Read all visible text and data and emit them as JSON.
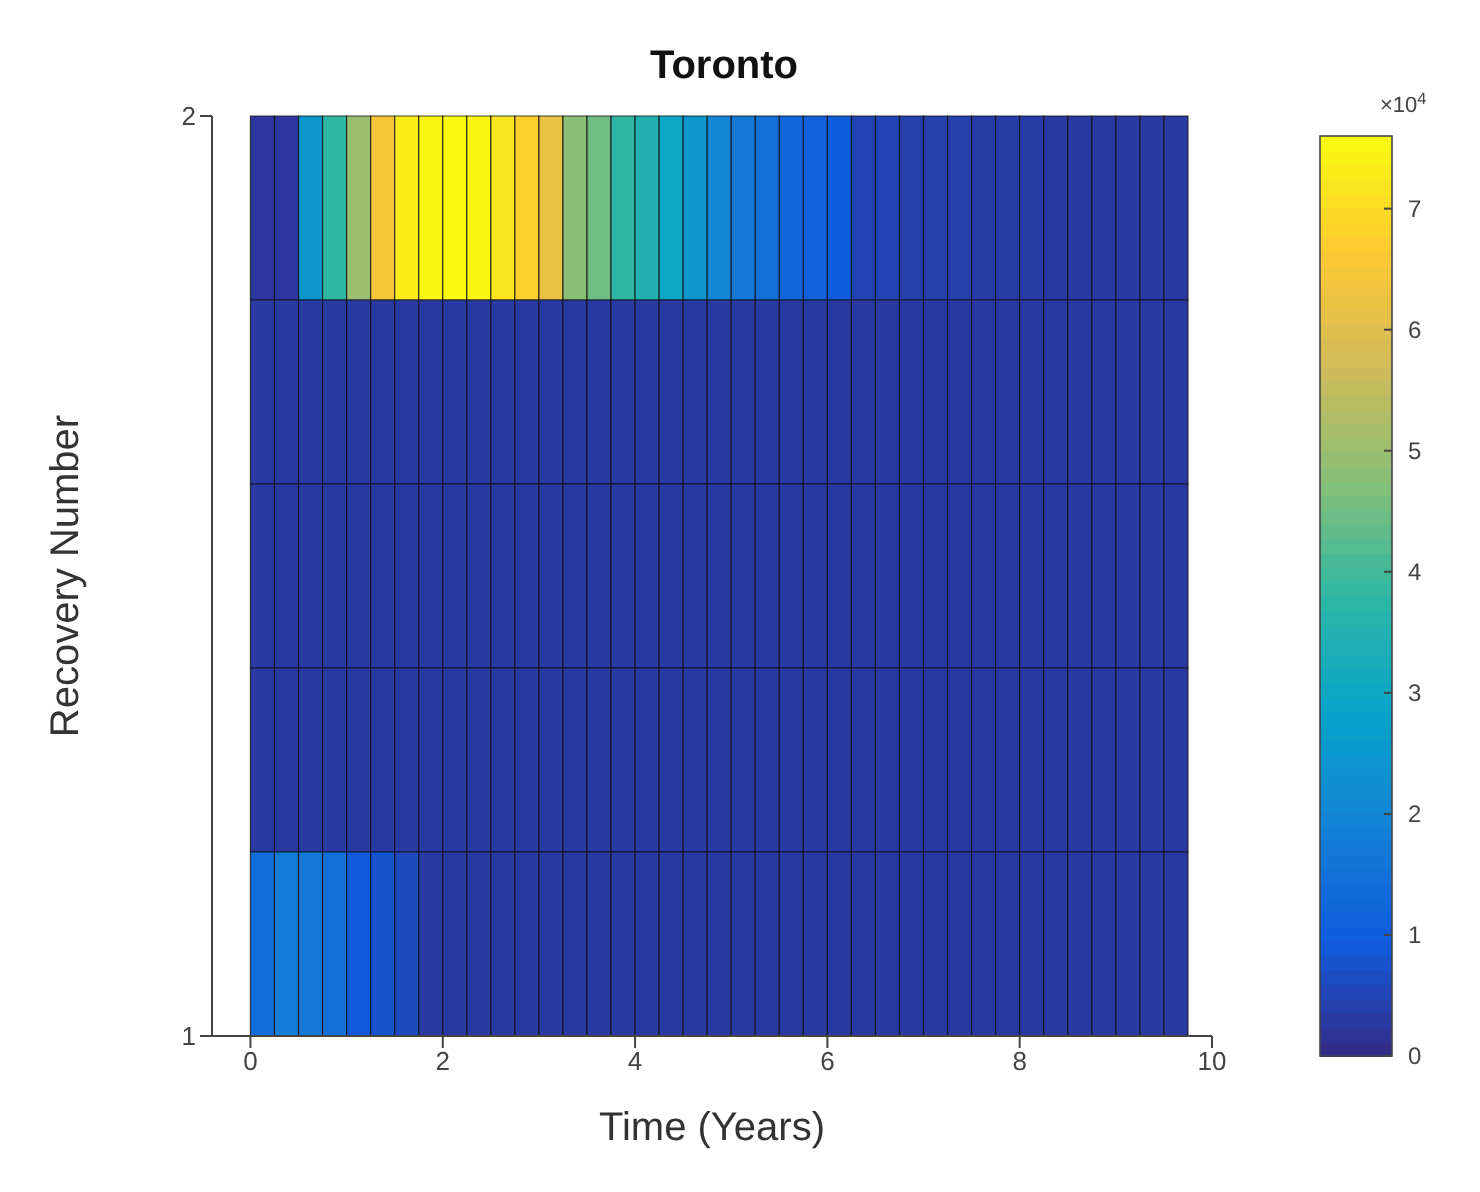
{
  "chart_data": {
    "type": "heatmap",
    "title": "Toronto",
    "xlabel": "Time (Years)",
    "ylabel": "Recovery Number",
    "x": [
      0.125,
      0.375,
      0.625,
      0.875,
      1.125,
      1.375,
      1.625,
      1.875,
      2.125,
      2.375,
      2.625,
      2.875,
      3.125,
      3.375,
      3.625,
      3.875,
      4.125,
      4.375,
      4.625,
      4.875,
      5.125,
      5.375,
      5.625,
      5.875,
      6.125,
      6.375,
      6.625,
      6.875,
      7.125,
      7.375,
      7.625,
      7.875,
      8.125,
      8.375,
      8.625,
      8.875,
      9.125,
      9.375,
      9.625
    ],
    "xlim": [
      -0.4,
      10
    ],
    "xticks": [
      0,
      2,
      4,
      6,
      8,
      10
    ],
    "ylim": [
      1,
      2
    ],
    "yticks": [
      1,
      2
    ],
    "cells": [
      [
        0.25,
        0.25,
        2.5,
        3.8,
        5,
        6.5,
        7.3,
        7.5,
        7.6,
        7.5,
        7.2,
        6.8,
        6.2,
        4.8,
        4.5,
        3.8,
        3.5,
        3,
        2.5,
        2,
        1.7,
        1.5,
        1.2,
        1.1,
        1,
        0.5,
        0.5,
        0.4,
        0.4,
        0.4,
        0.35,
        0.35,
        0.35,
        0.3,
        0.3,
        0.3,
        0.3,
        0.3,
        0.3
      ],
      [
        0.3,
        0.3,
        0.3,
        0.3,
        0.3,
        0.3,
        0.3,
        0.3,
        0.3,
        0.3,
        0.3,
        0.3,
        0.3,
        0.3,
        0.3,
        0.3,
        0.3,
        0.3,
        0.3,
        0.3,
        0.3,
        0.3,
        0.3,
        0.3,
        0.3,
        0.3,
        0.3,
        0.3,
        0.3,
        0.3,
        0.3,
        0.3,
        0.3,
        0.3,
        0.3,
        0.3,
        0.3,
        0.3,
        0.3
      ],
      [
        0.3,
        0.3,
        0.3,
        0.3,
        0.3,
        0.3,
        0.3,
        0.3,
        0.3,
        0.3,
        0.3,
        0.3,
        0.3,
        0.3,
        0.3,
        0.3,
        0.3,
        0.3,
        0.3,
        0.3,
        0.3,
        0.3,
        0.3,
        0.3,
        0.3,
        0.3,
        0.3,
        0.3,
        0.3,
        0.3,
        0.3,
        0.3,
        0.3,
        0.3,
        0.3,
        0.3,
        0.3,
        0.3,
        0.3
      ],
      [
        0.3,
        0.3,
        0.3,
        0.3,
        0.3,
        0.3,
        0.3,
        0.3,
        0.3,
        0.3,
        0.3,
        0.3,
        0.3,
        0.3,
        0.3,
        0.3,
        0.3,
        0.3,
        0.3,
        0.3,
        0.3,
        0.3,
        0.3,
        0.3,
        0.3,
        0.3,
        0.3,
        0.3,
        0.3,
        0.3,
        0.3,
        0.3,
        0.3,
        0.3,
        0.3,
        0.3,
        0.3,
        0.3,
        0.3
      ],
      [
        1.4,
        1.8,
        1.7,
        1.5,
        0.9,
        0.8,
        0.6,
        0.3,
        0.3,
        0.3,
        0.3,
        0.3,
        0.3,
        0.3,
        0.3,
        0.3,
        0.3,
        0.3,
        0.3,
        0.3,
        0.3,
        0.3,
        0.3,
        0.3,
        0.3,
        0.3,
        0.3,
        0.3,
        0.3,
        0.3,
        0.3,
        0.3,
        0.3,
        0.3,
        0.3,
        0.3,
        0.3,
        0.3,
        0.3
      ]
    ],
    "clim": [
      0,
      7.6
    ],
    "cticks": [
      0,
      1,
      2,
      3,
      4,
      5,
      6,
      7
    ],
    "annotations": [
      "×10$^{4}$"
    ]
  }
}
